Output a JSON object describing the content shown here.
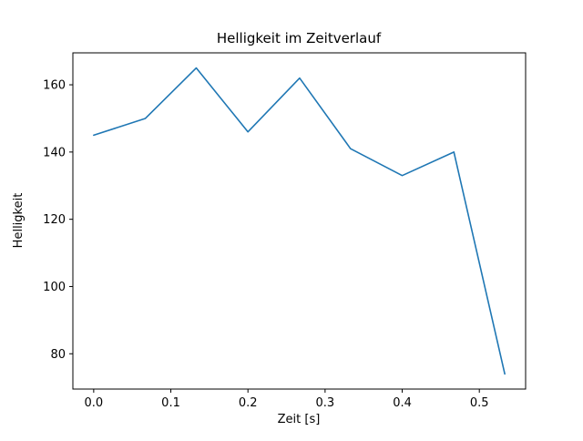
{
  "chart_data": {
    "type": "line",
    "title": "Helligkeit im Zeitverlauf",
    "xlabel": "Zeit [s]",
    "ylabel": "Helligkeit",
    "x": [
      0.0,
      0.067,
      0.133,
      0.2,
      0.267,
      0.333,
      0.4,
      0.467,
      0.533
    ],
    "y": [
      145,
      150,
      165,
      146,
      162,
      141,
      133,
      140,
      74
    ],
    "xlim": [
      -0.027,
      0.56
    ],
    "ylim": [
      69.5,
      169.5
    ],
    "xticks": [
      0.0,
      0.1,
      0.2,
      0.3,
      0.4,
      0.5
    ],
    "yticks": [
      80,
      100,
      120,
      140,
      160
    ],
    "line_color": "#1f77b4",
    "axis_color": "#000000",
    "background_color": "#ffffff",
    "grid": false,
    "legend": null
  }
}
